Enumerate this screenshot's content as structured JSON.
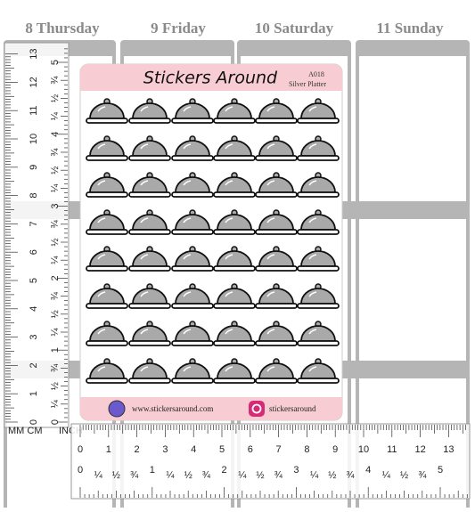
{
  "planner": {
    "days": [
      "8 Thursday",
      "9 Friday",
      "10 Saturday",
      "11 Sunday"
    ]
  },
  "sheet": {
    "brand": "Stickers Around",
    "code": "A018",
    "name": "Silver Platter",
    "website": "www.stickersaround.com",
    "instagram": "stickersaround"
  },
  "left_ruler": {
    "unit_label": "MM CM",
    "inch_label": "INCH",
    "cm": [
      "0",
      "1",
      "2",
      "3",
      "4",
      "5",
      "6",
      "7",
      "8",
      "9",
      "10",
      "11",
      "12",
      "13"
    ],
    "inch": [
      "0",
      "¼",
      "½",
      "¾",
      "1",
      "¼",
      "½",
      "¾",
      "2",
      "¼",
      "½",
      "¾",
      "3",
      "¼",
      "½",
      "¾",
      "4",
      "¼",
      "½",
      "¾",
      "5"
    ]
  },
  "bottom_ruler": {
    "cm": [
      "0",
      "1",
      "2",
      "3",
      "4",
      "5",
      "6",
      "7",
      "8",
      "9",
      "10",
      "11",
      "12",
      "13"
    ],
    "inch": [
      "0",
      "¼",
      "½",
      "¾",
      "1",
      "¼",
      "½",
      "¾",
      "2",
      "¼",
      "½",
      "¾",
      "3",
      "¼",
      "½",
      "¾",
      "4",
      "¼",
      "½",
      "¾",
      "5"
    ]
  }
}
